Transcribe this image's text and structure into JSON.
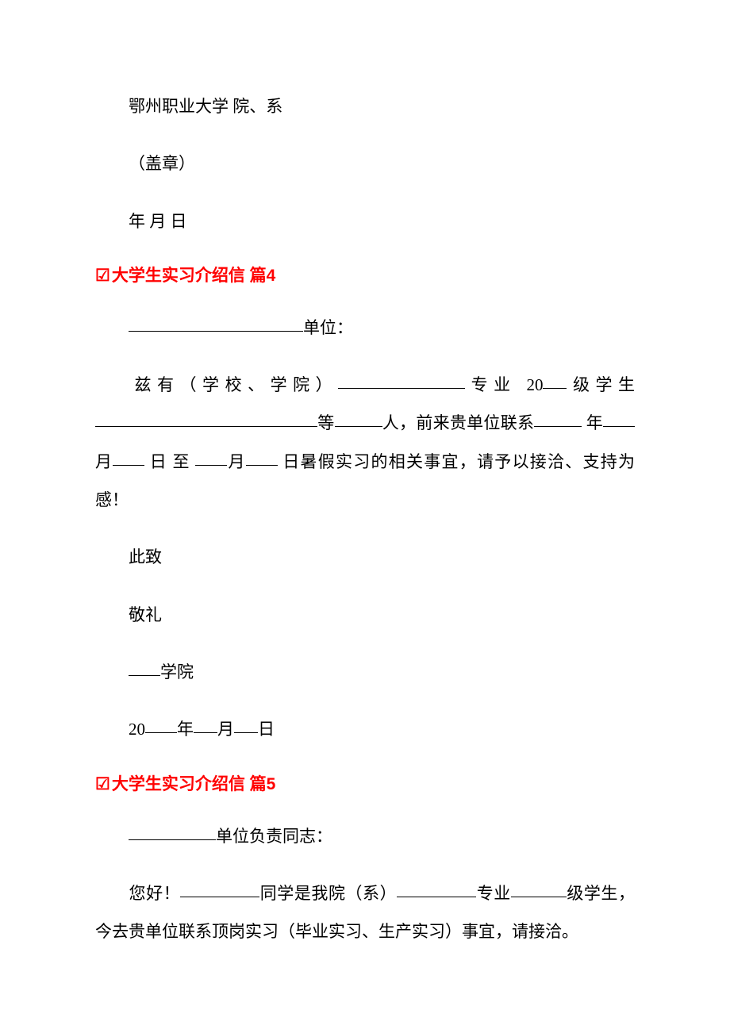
{
  "section3": {
    "line1": "鄂州职业大学 院、系",
    "line2": "（盖章）",
    "line3": "年 月 日"
  },
  "heading4": {
    "icon": "☑",
    "text": "大学生实习介绍信 篇",
    "num": "4"
  },
  "section4": {
    "unit_suffix": "单位：",
    "body_prefix": "兹有（学校、学院）",
    "body_major": "专业 20",
    "body_level": "级学生",
    "body_etc": "等",
    "body_people": "人，前来贵单位联系",
    "body_year": " 年",
    "body_month1": " 月",
    "body_day1": " 日 至 ",
    "body_month2": "月",
    "body_day2": " 日暑假实习的相关事宜，请予以接洽、支持为感！",
    "closing1": "此致",
    "closing2": "敬礼",
    "college": "学院",
    "date_prefix": "20",
    "date_year": "年",
    "date_month": "月",
    "date_day": "日"
  },
  "heading5": {
    "icon": "☑",
    "text": "大学生实习介绍信 篇",
    "num": "5"
  },
  "section5": {
    "unit_suffix": "单位负责同志：",
    "greeting": "您好！",
    "body_student": "同学是我院（系）",
    "body_major": "专业",
    "body_level": "级学生，今去贵单位联系顶岗实习（毕业实习、生产实习）事宜，请接洽。"
  },
  "style": {
    "heading_color": "#ff0000",
    "text_color": "#000000",
    "background_color": "#ffffff",
    "body_fontsize": 21,
    "heading_fontsize": 21
  }
}
